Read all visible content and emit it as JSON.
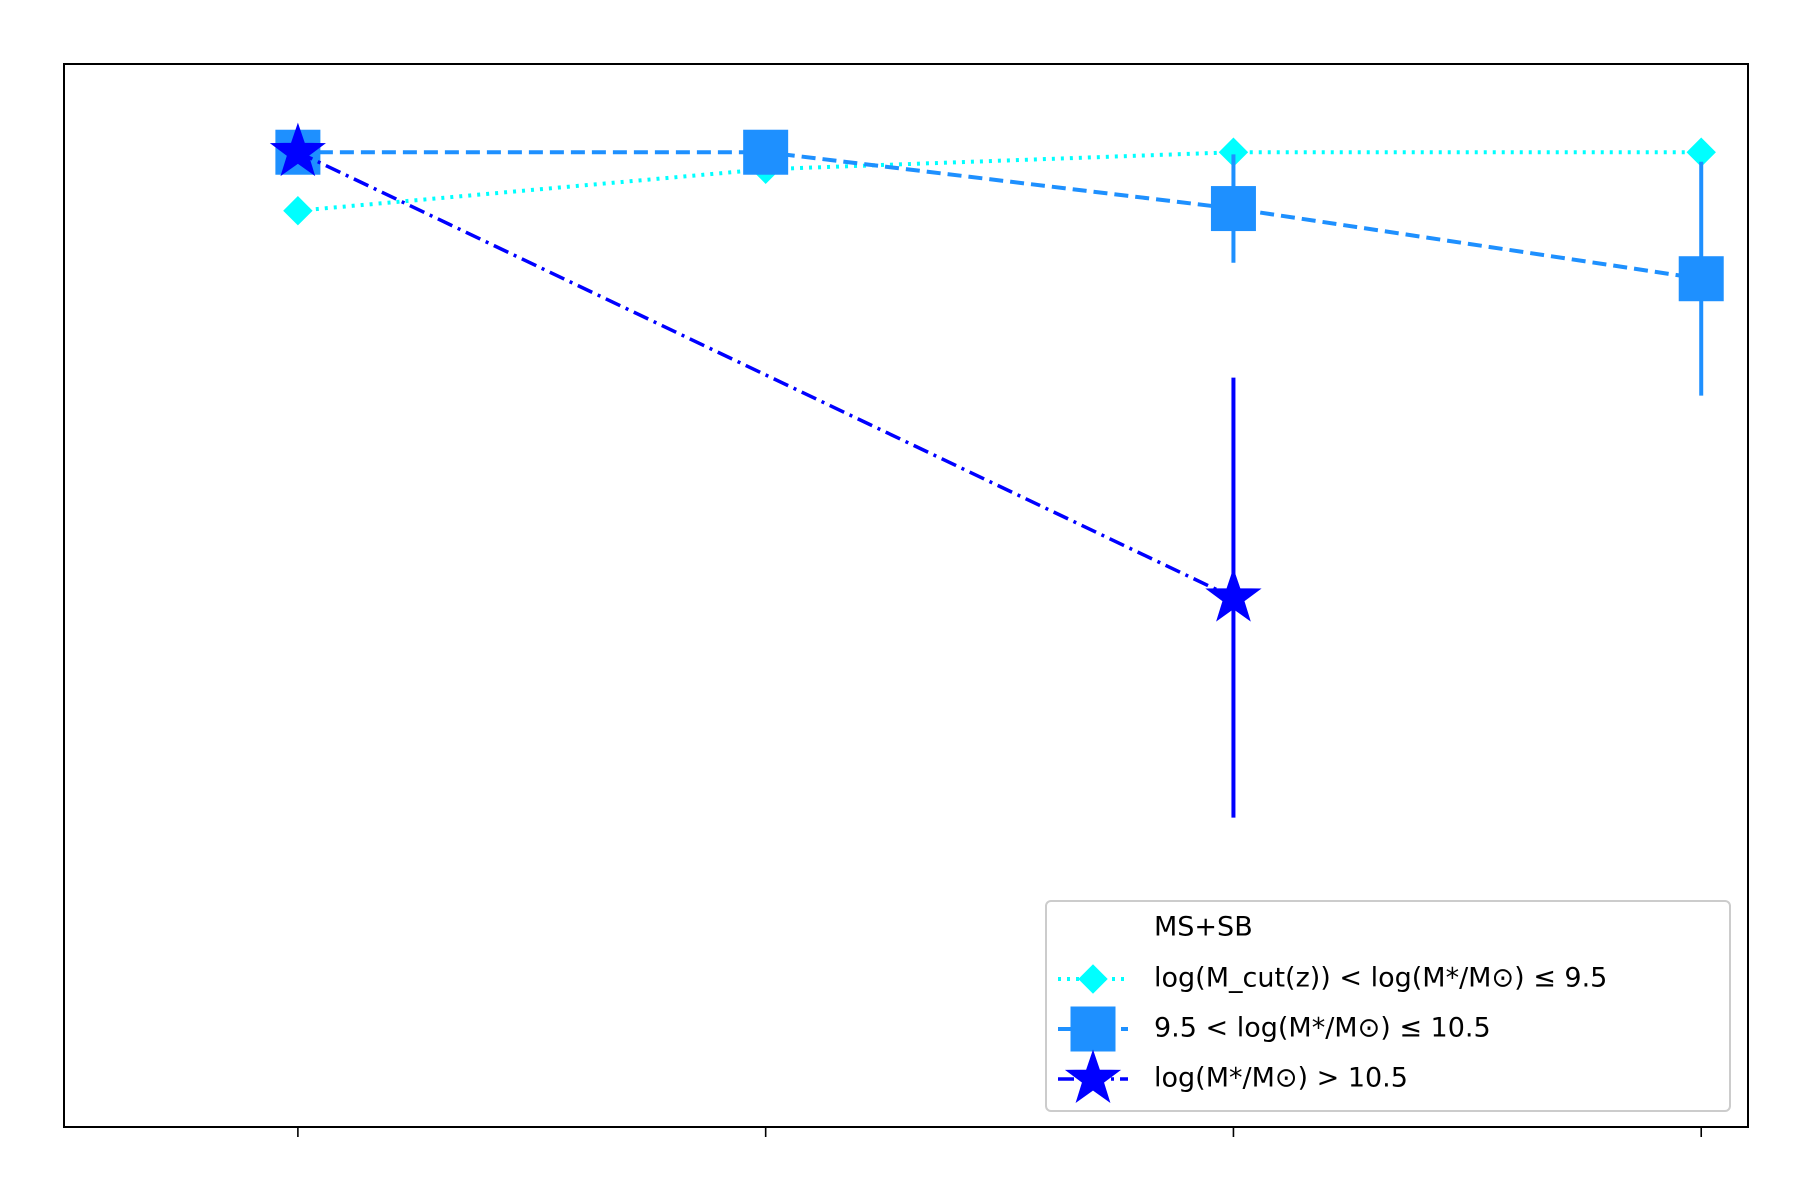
{
  "chart_data": {
    "type": "line",
    "x": [
      0,
      1,
      2,
      3
    ],
    "xlim": [
      -0.5,
      3.1
    ],
    "xticks": [
      0,
      1,
      2,
      3
    ],
    "ylim": [
      0,
      1
    ],
    "legend_title": "MS+SB",
    "legend_loc": "lower right",
    "series": [
      {
        "name": "log(M_cut(z)) < log(M*/M⊙) ≤ 9.5",
        "color": "#00ffff",
        "linestyle": "dotted",
        "marker": "diamond",
        "values": [
          0.862,
          0.901,
          0.917,
          0.917
        ]
      },
      {
        "name": "9.5 < log(M*/M⊙) ≤ 10.5",
        "color": "#1e90ff",
        "linestyle": "dashed",
        "marker": "square",
        "values": [
          0.917,
          0.917,
          0.864,
          0.798
        ],
        "errors": [
          null,
          null,
          0.051,
          0.11
        ]
      },
      {
        "name": "log(M*/M⊙) > 10.5",
        "color": "#0000ff",
        "linestyle": "dashdot",
        "marker": "star",
        "x": [
          0,
          2
        ],
        "values": [
          0.917,
          0.498
        ],
        "errors": [
          null,
          0.207
        ]
      }
    ]
  }
}
